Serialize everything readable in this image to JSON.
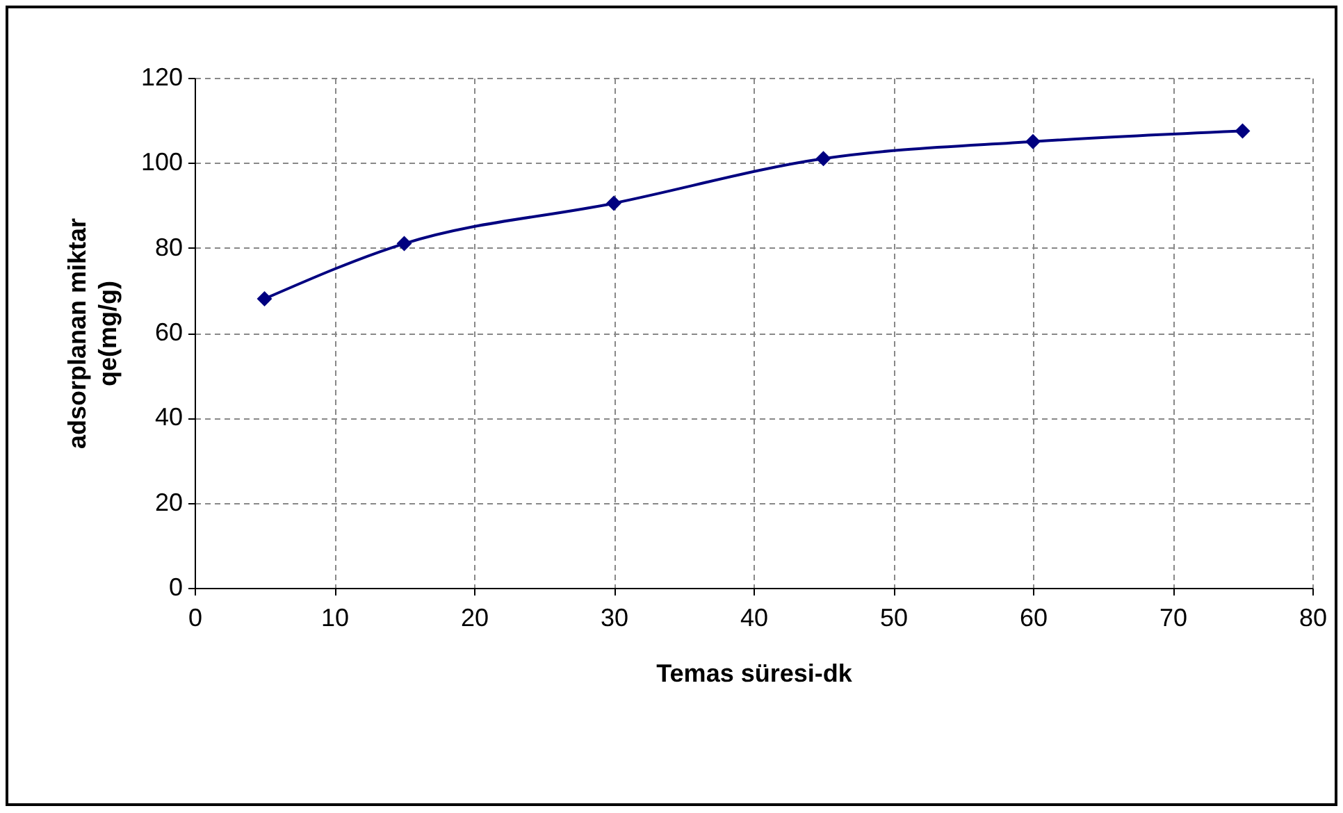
{
  "chart_data": {
    "type": "line",
    "xlabel": "Temas süresi-dk",
    "ylabel": "adsorplanan miktar\nqe(mg/g)",
    "x": [
      5,
      15,
      30,
      45,
      60,
      75
    ],
    "series": [
      {
        "color": "#000080",
        "values": [
          68,
          81,
          90.5,
          101,
          105,
          107.5
        ]
      }
    ],
    "xlim": [
      0,
      80
    ],
    "xticks": [
      0,
      10,
      20,
      30,
      40,
      50,
      60,
      70,
      80
    ],
    "ylim": [
      0,
      120
    ],
    "yticks": [
      0,
      20,
      40,
      60,
      80,
      100,
      120
    ],
    "grid": true,
    "marker": "diamond",
    "line_style": "solid"
  }
}
